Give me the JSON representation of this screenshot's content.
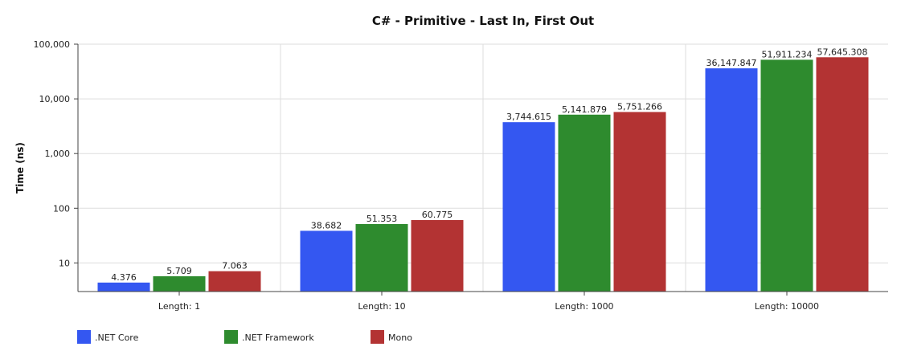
{
  "chart_data": {
    "type": "bar",
    "title": "C# - Primitive - Last In, First Out",
    "xlabel": "",
    "ylabel": "Time (ns)",
    "yscale": "log",
    "ylim": [
      3,
      100000
    ],
    "yticks": [
      10,
      100,
      1000,
      10000,
      100000
    ],
    "ytick_labels": [
      "10",
      "100",
      "1,000",
      "10,000",
      "100,000"
    ],
    "grid": true,
    "legend_position": "bottom-left",
    "categories": [
      "Length: 1",
      "Length: 10",
      "Length: 1000",
      "Length: 10000"
    ],
    "series": [
      {
        "name": ".NET Core",
        "color": "#3457f1",
        "values": [
          4.376,
          38.682,
          3744.615,
          36147.847
        ],
        "labels": [
          "4.376",
          "38.682",
          "3,744.615",
          "36,147.847"
        ]
      },
      {
        "name": ".NET Framework",
        "color": "#2e8b2e",
        "values": [
          5.709,
          51.353,
          5141.879,
          51911.234
        ],
        "labels": [
          "5.709",
          "51.353",
          "5,141.879",
          "51,911.234"
        ]
      },
      {
        "name": "Mono",
        "color": "#b33333",
        "values": [
          7.063,
          60.775,
          5751.266,
          57645.308
        ],
        "labels": [
          "7.063",
          "60.775",
          "5,751.266",
          "57,645.308"
        ]
      }
    ]
  }
}
